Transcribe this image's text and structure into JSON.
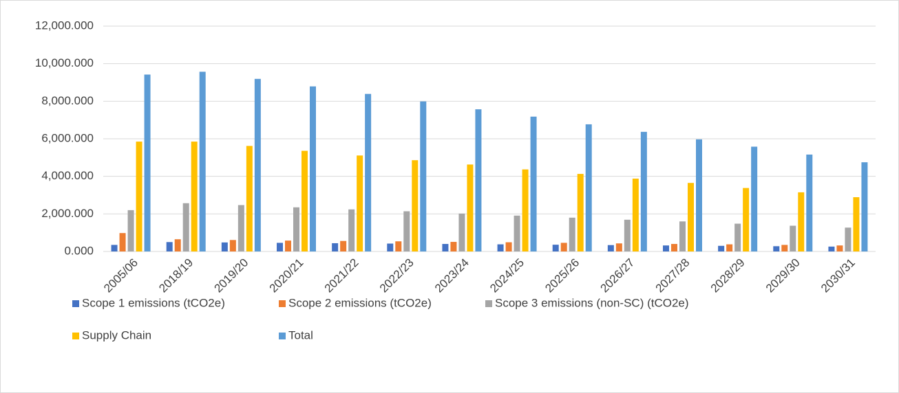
{
  "chart_data": {
    "type": "bar",
    "categories": [
      "2005/06",
      "2018/19",
      "2019/20",
      "2020/21",
      "2021/22",
      "2022/23",
      "2023/24",
      "2024/25",
      "2025/26",
      "2026/27",
      "2027/28",
      "2028/29",
      "2029/30",
      "2030/31"
    ],
    "series": [
      {
        "name": "Scope 1 emissions (tCO2e)",
        "color": "#4472c4",
        "values": [
          350,
          500,
          480,
          460,
          440,
          420,
          400,
          380,
          360,
          340,
          320,
          300,
          280,
          260
        ]
      },
      {
        "name": "Scope 2 emissions (tCO2e)",
        "color": "#ed7d31",
        "values": [
          980,
          650,
          610,
          580,
          560,
          540,
          510,
          490,
          460,
          430,
          400,
          380,
          350,
          320
        ]
      },
      {
        "name": "Scope 3 emissions (non-SC) (tCO2e)",
        "color": "#a5a5a5",
        "values": [
          2200,
          2570,
          2470,
          2350,
          2240,
          2140,
          2020,
          1910,
          1800,
          1690,
          1600,
          1480,
          1370,
          1270
        ]
      },
      {
        "name": "Supply Chain",
        "color": "#ffc000",
        "values": [
          5850,
          5850,
          5620,
          5360,
          5110,
          4860,
          4630,
          4370,
          4130,
          3880,
          3650,
          3380,
          3150,
          2890
        ]
      },
      {
        "name": "Total",
        "color": "#5b9bd5",
        "values": [
          9420,
          9570,
          9190,
          8790,
          8390,
          7990,
          7570,
          7180,
          6770,
          6370,
          5970,
          5580,
          5160,
          4750
        ]
      }
    ],
    "ylim": [
      0,
      12000
    ],
    "yticks": [
      {
        "value": 0,
        "label": "0.000"
      },
      {
        "value": 2000,
        "label": "2,000.000"
      },
      {
        "value": 4000,
        "label": "4,000.000"
      },
      {
        "value": 6000,
        "label": "6,000.000"
      },
      {
        "value": 8000,
        "label": "8,000.000"
      },
      {
        "value": 10000,
        "label": "10,000.000"
      },
      {
        "value": 12000,
        "label": "12,000.000"
      }
    ],
    "grid": true,
    "legend": "bottom"
  }
}
